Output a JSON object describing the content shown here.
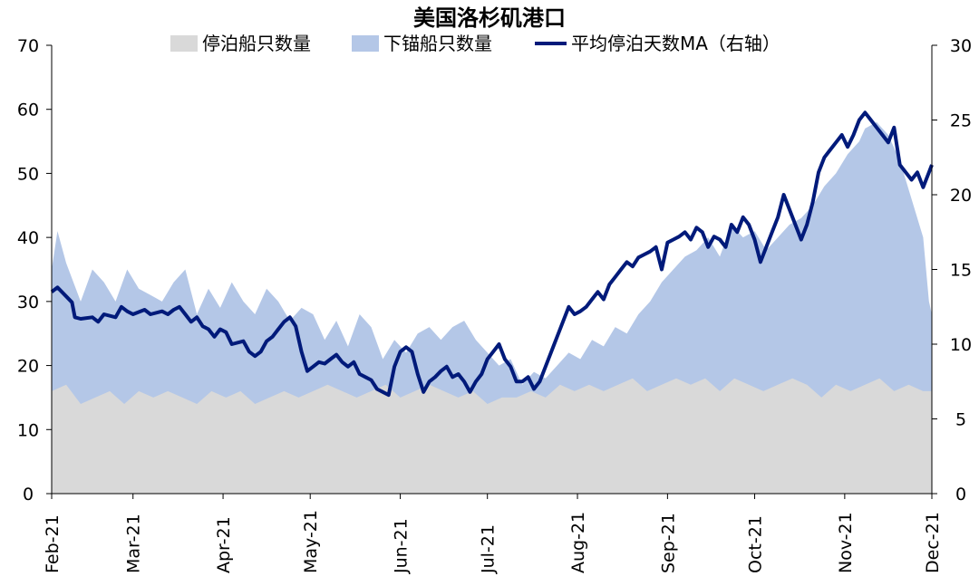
{
  "chart_data": {
    "type": "area",
    "title": "美国洛杉矶港口",
    "colors": {
      "moored": "#d9d9d9",
      "anchored": "#b4c7e7",
      "avg": "#001a7a"
    },
    "x_ticks": [
      "Feb-21",
      "Mar-21",
      "Apr-21",
      "May-21",
      "Jun-21",
      "Jul-21",
      "Aug-21",
      "Sep-21",
      "Oct-21",
      "Nov-21",
      "Dec-21"
    ],
    "y_left": {
      "ylim": [
        0,
        70
      ],
      "ticks": [
        "0",
        "10",
        "20",
        "30",
        "40",
        "50",
        "60",
        "70"
      ]
    },
    "y_right": {
      "ylim": [
        0,
        30
      ],
      "ticks": [
        "0",
        "5",
        "10",
        "15",
        "20",
        "25",
        "30"
      ]
    },
    "x_range_days": [
      0,
      303
    ],
    "series": [
      {
        "name": "停泊船只数量",
        "kind": "area",
        "axis": "left",
        "points": [
          [
            0,
            16
          ],
          [
            5,
            17
          ],
          [
            10,
            14
          ],
          [
            15,
            15
          ],
          [
            20,
            16
          ],
          [
            25,
            14
          ],
          [
            30,
            16
          ],
          [
            35,
            15
          ],
          [
            40,
            16
          ],
          [
            45,
            15
          ],
          [
            50,
            14
          ],
          [
            55,
            16
          ],
          [
            60,
            15
          ],
          [
            65,
            16
          ],
          [
            70,
            14
          ],
          [
            75,
            15
          ],
          [
            80,
            16
          ],
          [
            85,
            15
          ],
          [
            90,
            16
          ],
          [
            95,
            17
          ],
          [
            100,
            16
          ],
          [
            105,
            15
          ],
          [
            110,
            16
          ],
          [
            115,
            17
          ],
          [
            120,
            15
          ],
          [
            125,
            16
          ],
          [
            130,
            17
          ],
          [
            135,
            16
          ],
          [
            140,
            15
          ],
          [
            145,
            16
          ],
          [
            150,
            14
          ],
          [
            155,
            15
          ],
          [
            160,
            15
          ],
          [
            165,
            16
          ],
          [
            170,
            15
          ],
          [
            175,
            17
          ],
          [
            180,
            16
          ],
          [
            185,
            17
          ],
          [
            190,
            16
          ],
          [
            195,
            17
          ],
          [
            200,
            18
          ],
          [
            205,
            16
          ],
          [
            210,
            17
          ],
          [
            215,
            18
          ],
          [
            220,
            17
          ],
          [
            225,
            18
          ],
          [
            230,
            16
          ],
          [
            235,
            18
          ],
          [
            240,
            17
          ],
          [
            245,
            16
          ],
          [
            250,
            17
          ],
          [
            255,
            18
          ],
          [
            260,
            17
          ],
          [
            265,
            15
          ],
          [
            270,
            17
          ],
          [
            275,
            16
          ],
          [
            280,
            17
          ],
          [
            285,
            18
          ],
          [
            290,
            16
          ],
          [
            295,
            17
          ],
          [
            300,
            16
          ],
          [
            303,
            16
          ]
        ]
      },
      {
        "name": "下锚船只数量",
        "kind": "area",
        "axis": "left",
        "points": [
          [
            0,
            35
          ],
          [
            2,
            41
          ],
          [
            5,
            36
          ],
          [
            10,
            30
          ],
          [
            14,
            35
          ],
          [
            18,
            33
          ],
          [
            22,
            30
          ],
          [
            26,
            35
          ],
          [
            30,
            32
          ],
          [
            34,
            31
          ],
          [
            38,
            30
          ],
          [
            42,
            33
          ],
          [
            46,
            35
          ],
          [
            50,
            28
          ],
          [
            54,
            32
          ],
          [
            58,
            29
          ],
          [
            62,
            33
          ],
          [
            66,
            30
          ],
          [
            70,
            28
          ],
          [
            74,
            32
          ],
          [
            78,
            30
          ],
          [
            82,
            27
          ],
          [
            86,
            29
          ],
          [
            90,
            28
          ],
          [
            94,
            24
          ],
          [
            98,
            27
          ],
          [
            102,
            23
          ],
          [
            106,
            28
          ],
          [
            110,
            26
          ],
          [
            114,
            21
          ],
          [
            118,
            24
          ],
          [
            122,
            22
          ],
          [
            126,
            25
          ],
          [
            130,
            26
          ],
          [
            134,
            24
          ],
          [
            138,
            26
          ],
          [
            142,
            27
          ],
          [
            146,
            24
          ],
          [
            150,
            22
          ],
          [
            154,
            20
          ],
          [
            158,
            21
          ],
          [
            162,
            17
          ],
          [
            166,
            19
          ],
          [
            170,
            18
          ],
          [
            174,
            20
          ],
          [
            178,
            22
          ],
          [
            182,
            21
          ],
          [
            186,
            24
          ],
          [
            190,
            23
          ],
          [
            194,
            26
          ],
          [
            198,
            25
          ],
          [
            202,
            28
          ],
          [
            206,
            30
          ],
          [
            210,
            33
          ],
          [
            214,
            35
          ],
          [
            218,
            37
          ],
          [
            222,
            38
          ],
          [
            226,
            40
          ],
          [
            230,
            37
          ],
          [
            234,
            42
          ],
          [
            238,
            40
          ],
          [
            242,
            41
          ],
          [
            246,
            38
          ],
          [
            250,
            40
          ],
          [
            254,
            42
          ],
          [
            258,
            43
          ],
          [
            262,
            45
          ],
          [
            266,
            48
          ],
          [
            270,
            50
          ],
          [
            274,
            53
          ],
          [
            278,
            55
          ],
          [
            280,
            57
          ],
          [
            284,
            58
          ],
          [
            288,
            56
          ],
          [
            292,
            52
          ],
          [
            296,
            46
          ],
          [
            300,
            40
          ],
          [
            302,
            30
          ],
          [
            303,
            28
          ]
        ]
      },
      {
        "name": "平均停泊天数MA（右轴）",
        "kind": "line",
        "axis": "right",
        "points": [
          [
            0,
            13.5
          ],
          [
            2,
            13.8
          ],
          [
            5,
            13.2
          ],
          [
            7,
            12.8
          ],
          [
            8,
            11.8
          ],
          [
            10,
            11.7
          ],
          [
            14,
            11.8
          ],
          [
            16,
            11.5
          ],
          [
            18,
            12.0
          ],
          [
            22,
            11.8
          ],
          [
            24,
            12.5
          ],
          [
            26,
            12.2
          ],
          [
            28,
            12.0
          ],
          [
            32,
            12.3
          ],
          [
            34,
            12.0
          ],
          [
            38,
            12.2
          ],
          [
            40,
            12.0
          ],
          [
            42,
            12.3
          ],
          [
            44,
            12.5
          ],
          [
            46,
            12.0
          ],
          [
            48,
            11.5
          ],
          [
            50,
            11.8
          ],
          [
            52,
            11.2
          ],
          [
            54,
            11.0
          ],
          [
            56,
            10.5
          ],
          [
            58,
            11.0
          ],
          [
            60,
            10.8
          ],
          [
            62,
            10.0
          ],
          [
            66,
            10.2
          ],
          [
            68,
            9.5
          ],
          [
            70,
            9.2
          ],
          [
            72,
            9.5
          ],
          [
            74,
            10.2
          ],
          [
            76,
            10.5
          ],
          [
            78,
            11.0
          ],
          [
            80,
            11.5
          ],
          [
            82,
            11.8
          ],
          [
            84,
            11.2
          ],
          [
            86,
            9.5
          ],
          [
            88,
            8.2
          ],
          [
            90,
            8.5
          ],
          [
            92,
            8.8
          ],
          [
            94,
            8.7
          ],
          [
            96,
            9.0
          ],
          [
            98,
            9.3
          ],
          [
            100,
            8.8
          ],
          [
            102,
            8.5
          ],
          [
            104,
            8.8
          ],
          [
            106,
            8.0
          ],
          [
            108,
            7.8
          ],
          [
            110,
            7.6
          ],
          [
            112,
            7.0
          ],
          [
            114,
            6.8
          ],
          [
            116,
            6.6
          ],
          [
            118,
            8.5
          ],
          [
            120,
            9.5
          ],
          [
            122,
            9.8
          ],
          [
            124,
            9.5
          ],
          [
            126,
            8.0
          ],
          [
            128,
            6.8
          ],
          [
            130,
            7.5
          ],
          [
            132,
            7.8
          ],
          [
            134,
            8.2
          ],
          [
            136,
            8.5
          ],
          [
            138,
            7.8
          ],
          [
            140,
            8.0
          ],
          [
            142,
            7.5
          ],
          [
            144,
            6.8
          ],
          [
            146,
            7.5
          ],
          [
            148,
            8.0
          ],
          [
            150,
            9.0
          ],
          [
            152,
            9.5
          ],
          [
            154,
            10.0
          ],
          [
            156,
            9.0
          ],
          [
            158,
            8.5
          ],
          [
            160,
            7.5
          ],
          [
            162,
            7.5
          ],
          [
            164,
            7.8
          ],
          [
            166,
            7.0
          ],
          [
            168,
            7.5
          ],
          [
            170,
            8.5
          ],
          [
            172,
            9.5
          ],
          [
            174,
            10.5
          ],
          [
            176,
            11.5
          ],
          [
            178,
            12.5
          ],
          [
            180,
            12.0
          ],
          [
            182,
            12.2
          ],
          [
            184,
            12.5
          ],
          [
            186,
            13.0
          ],
          [
            188,
            13.5
          ],
          [
            190,
            13.0
          ],
          [
            192,
            14.0
          ],
          [
            194,
            14.5
          ],
          [
            196,
            15.0
          ],
          [
            198,
            15.5
          ],
          [
            200,
            15.2
          ],
          [
            202,
            15.8
          ],
          [
            204,
            16.0
          ],
          [
            206,
            16.2
          ],
          [
            208,
            16.5
          ],
          [
            210,
            15.0
          ],
          [
            212,
            16.8
          ],
          [
            214,
            17.0
          ],
          [
            216,
            17.2
          ],
          [
            218,
            17.5
          ],
          [
            220,
            17.0
          ],
          [
            222,
            17.8
          ],
          [
            224,
            17.5
          ],
          [
            226,
            16.5
          ],
          [
            228,
            17.2
          ],
          [
            230,
            17.0
          ],
          [
            232,
            16.5
          ],
          [
            234,
            18.0
          ],
          [
            236,
            17.5
          ],
          [
            238,
            18.5
          ],
          [
            240,
            18.0
          ],
          [
            242,
            17.0
          ],
          [
            244,
            15.5
          ],
          [
            246,
            16.5
          ],
          [
            248,
            17.5
          ],
          [
            250,
            18.5
          ],
          [
            252,
            20.0
          ],
          [
            254,
            19.0
          ],
          [
            256,
            18.0
          ],
          [
            258,
            17.0
          ],
          [
            260,
            18.0
          ],
          [
            262,
            19.5
          ],
          [
            264,
            21.5
          ],
          [
            266,
            22.5
          ],
          [
            268,
            23.0
          ],
          [
            270,
            23.5
          ],
          [
            272,
            24.0
          ],
          [
            274,
            23.2
          ],
          [
            276,
            24.0
          ],
          [
            278,
            25.0
          ],
          [
            280,
            25.5
          ],
          [
            282,
            25.0
          ],
          [
            284,
            24.5
          ],
          [
            286,
            24.0
          ],
          [
            288,
            23.5
          ],
          [
            290,
            24.5
          ],
          [
            292,
            22.0
          ],
          [
            294,
            21.5
          ],
          [
            296,
            21.0
          ],
          [
            298,
            21.5
          ],
          [
            300,
            20.5
          ],
          [
            302,
            21.5
          ],
          [
            303,
            22.0
          ]
        ]
      }
    ]
  }
}
